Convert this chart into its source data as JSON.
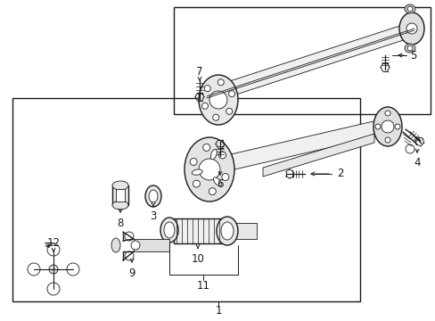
{
  "bg_color": "#ffffff",
  "line_color": "#1a1a1a",
  "fig_width": 4.89,
  "fig_height": 3.6,
  "dpi": 100,
  "font_size": 8.5,
  "lw_main": 1.0,
  "lw_thin": 0.6,
  "lw_med": 0.8
}
